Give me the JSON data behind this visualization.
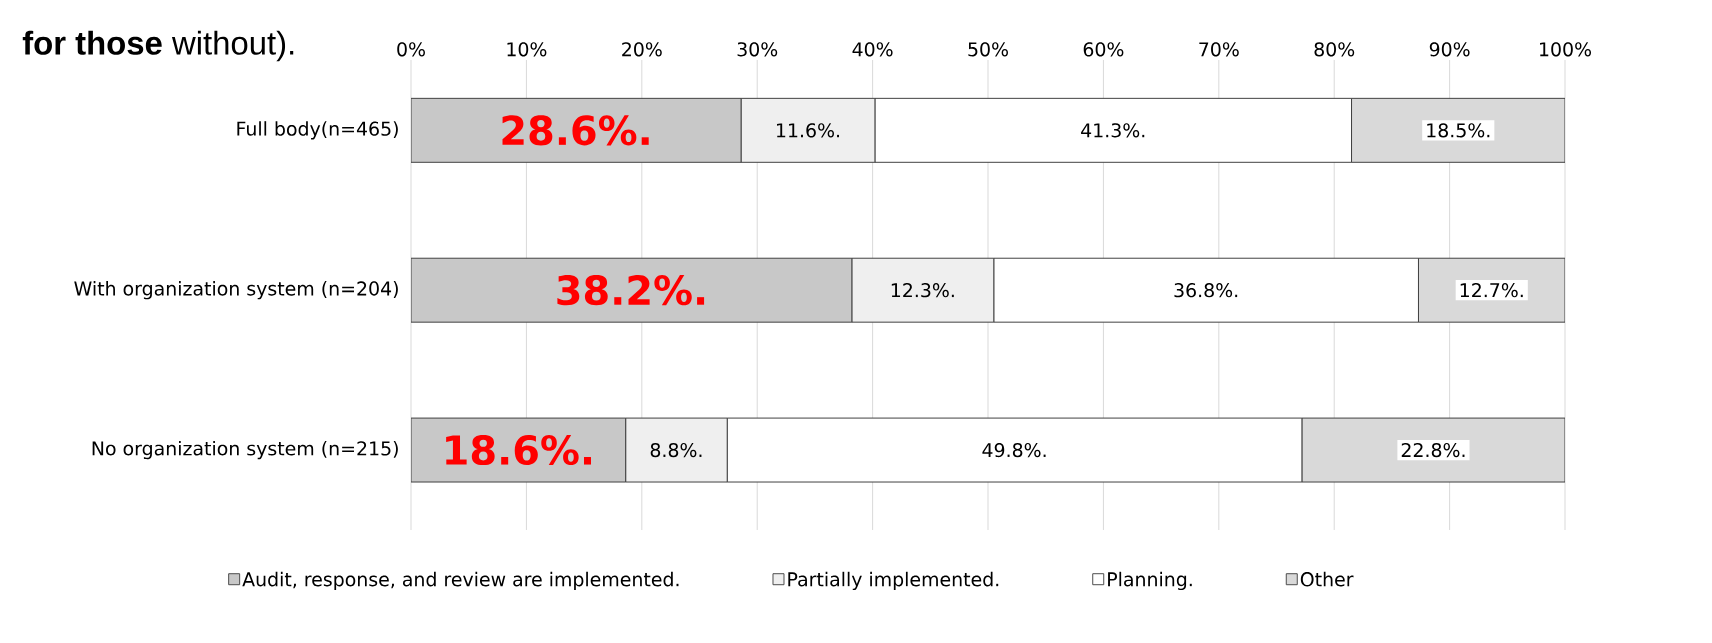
{
  "chart_data": {
    "type": "bar",
    "orientation": "horizontal",
    "stacked": true,
    "title": "**for those** without).",
    "categories": [
      "Full body(n=465)",
      "With organization system (n=204)",
      "No organization system (n=215)"
    ],
    "series": [
      {
        "name": "Audit, response, and review are implemented.",
        "color": "#c8c8c8",
        "values": [
          28.6,
          38.2,
          18.6
        ],
        "value_labels": [
          "28.6%.",
          "38.2%.",
          "18.6%."
        ]
      },
      {
        "name": "Partially implemented.",
        "color": "#efefef",
        "values": [
          11.6,
          12.3,
          8.8
        ],
        "value_labels": [
          "11.6%.",
          "12.3%.",
          "8.8%."
        ]
      },
      {
        "name": "Planning.",
        "color": "#ffffff",
        "values": [
          41.3,
          36.8,
          49.8
        ],
        "value_labels": [
          "41.3%.",
          "36.8%.",
          "49.8%."
        ]
      },
      {
        "name": "Other",
        "color": "#d9d9d9",
        "values": [
          18.5,
          12.7,
          22.8
        ],
        "value_labels": [
          "18.5%.",
          "12.7%.",
          "22.8%."
        ]
      }
    ],
    "xlim": [
      0,
      100
    ],
    "xticks": [
      {
        "value": 0,
        "label": "0%"
      },
      {
        "value": 10,
        "label": "10%"
      },
      {
        "value": 20,
        "label": "20%"
      },
      {
        "value": 30,
        "label": "30%"
      },
      {
        "value": 40,
        "label": "40%"
      },
      {
        "value": 50,
        "label": "50%"
      },
      {
        "value": 60,
        "label": "60%"
      },
      {
        "value": 70,
        "label": "70%"
      },
      {
        "value": 80,
        "label": "80%"
      },
      {
        "value": 90,
        "label": "90%"
      },
      {
        "value": 100,
        "label": "100%"
      }
    ],
    "grid": "x",
    "legend": "bottom"
  }
}
